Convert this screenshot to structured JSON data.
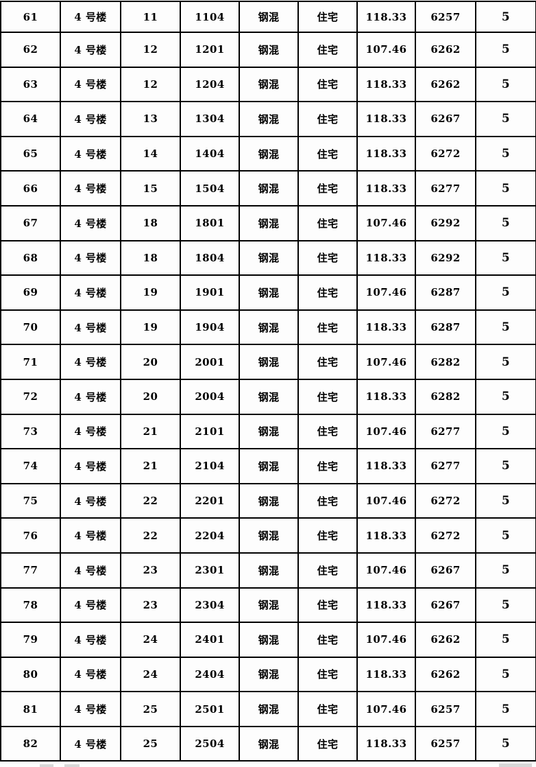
{
  "table": {
    "rows": [
      [
        "61",
        "4 号楼",
        "11",
        "1104",
        "钢混",
        "住宅",
        "118.33",
        "6257",
        "5"
      ],
      [
        "62",
        "4 号楼",
        "12",
        "1201",
        "钢混",
        "住宅",
        "107.46",
        "6262",
        "5"
      ],
      [
        "63",
        "4 号楼",
        "12",
        "1204",
        "钢混",
        "住宅",
        "118.33",
        "6262",
        "5"
      ],
      [
        "64",
        "4 号楼",
        "13",
        "1304",
        "钢混",
        "住宅",
        "118.33",
        "6267",
        "5"
      ],
      [
        "65",
        "4 号楼",
        "14",
        "1404",
        "钢混",
        "住宅",
        "118.33",
        "6272",
        "5"
      ],
      [
        "66",
        "4 号楼",
        "15",
        "1504",
        "钢混",
        "住宅",
        "118.33",
        "6277",
        "5"
      ],
      [
        "67",
        "4 号楼",
        "18",
        "1801",
        "钢混",
        "住宅",
        "107.46",
        "6292",
        "5"
      ],
      [
        "68",
        "4 号楼",
        "18",
        "1804",
        "钢混",
        "住宅",
        "118.33",
        "6292",
        "5"
      ],
      [
        "69",
        "4 号楼",
        "19",
        "1901",
        "钢混",
        "住宅",
        "107.46",
        "6287",
        "5"
      ],
      [
        "70",
        "4 号楼",
        "19",
        "1904",
        "钢混",
        "住宅",
        "118.33",
        "6287",
        "5"
      ],
      [
        "71",
        "4 号楼",
        "20",
        "2001",
        "钢混",
        "住宅",
        "107.46",
        "6282",
        "5"
      ],
      [
        "72",
        "4 号楼",
        "20",
        "2004",
        "钢混",
        "住宅",
        "118.33",
        "6282",
        "5"
      ],
      [
        "73",
        "4 号楼",
        "21",
        "2101",
        "钢混",
        "住宅",
        "107.46",
        "6277",
        "5"
      ],
      [
        "74",
        "4 号楼",
        "21",
        "2104",
        "钢混",
        "住宅",
        "118.33",
        "6277",
        "5"
      ],
      [
        "75",
        "4 号楼",
        "22",
        "2201",
        "钢混",
        "住宅",
        "107.46",
        "6272",
        "5"
      ],
      [
        "76",
        "4 号楼",
        "22",
        "2204",
        "钢混",
        "住宅",
        "118.33",
        "6272",
        "5"
      ],
      [
        "77",
        "4 号楼",
        "23",
        "2301",
        "钢混",
        "住宅",
        "107.46",
        "6267",
        "5"
      ],
      [
        "78",
        "4 号楼",
        "23",
        "2304",
        "钢混",
        "住宅",
        "118.33",
        "6267",
        "5"
      ],
      [
        "79",
        "4 号楼",
        "24",
        "2401",
        "钢混",
        "住宅",
        "107.46",
        "6262",
        "5"
      ],
      [
        "80",
        "4 号楼",
        "24",
        "2404",
        "钢混",
        "住宅",
        "118.33",
        "6262",
        "5"
      ],
      [
        "81",
        "4 号楼",
        "25",
        "2501",
        "钢混",
        "住宅",
        "107.46",
        "6257",
        "5"
      ],
      [
        "82",
        "4 号楼",
        "25",
        "2504",
        "钢混",
        "住宅",
        "118.33",
        "6257",
        "5"
      ]
    ]
  }
}
